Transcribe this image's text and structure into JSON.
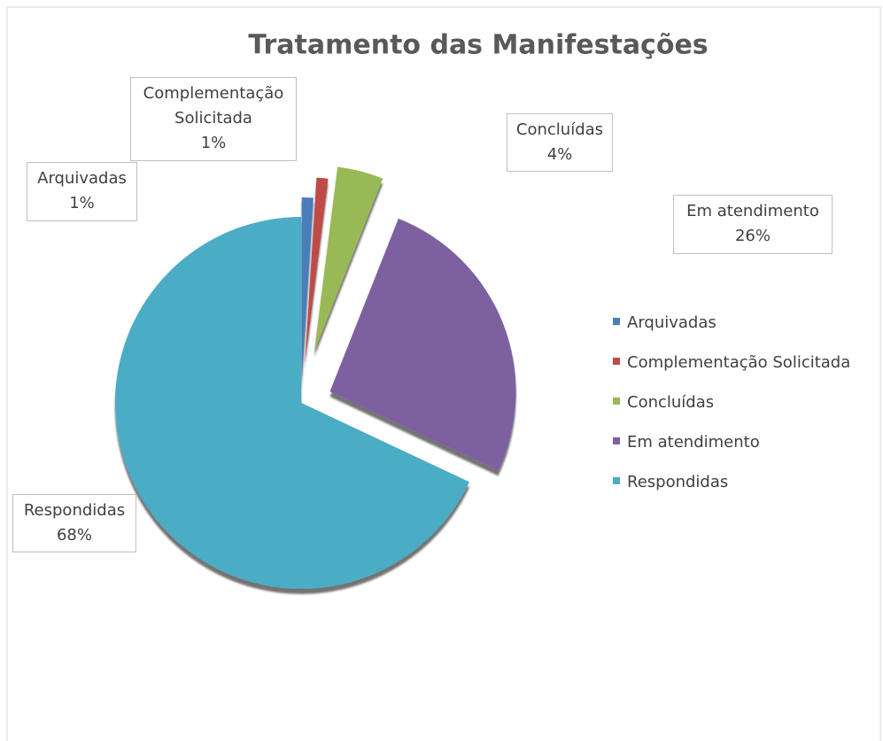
{
  "chart_data": {
    "type": "pie",
    "title": "Tratamento das Manifestações",
    "categories": [
      "Arquivadas",
      "Complementação Solicitada",
      "Concluídas",
      "Em atendimento",
      "Respondidas"
    ],
    "values": [
      1,
      1,
      4,
      26,
      68
    ],
    "value_labels": [
      "1%",
      "1%",
      "4%",
      "26%",
      "68%"
    ],
    "colors": [
      "#4a7ebb",
      "#be4b48",
      "#98b954",
      "#7d60a0",
      "#4bacc6"
    ],
    "legend": "right"
  }
}
